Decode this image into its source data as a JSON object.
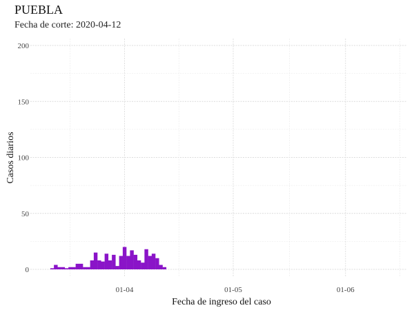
{
  "chart_data": {
    "type": "bar",
    "title": "PUEBLA",
    "subtitle": "Fecha de corte: 2020-04-12",
    "xlabel": "Fecha de ingreso del caso",
    "ylabel": "Casos diarios",
    "ylim": [
      0,
      200
    ],
    "yticks": [
      0,
      50,
      100,
      150,
      200
    ],
    "xlim": [
      "2020-03-06",
      "2020-06-18"
    ],
    "xticks": [
      {
        "date": "2020-04-01",
        "label": "01-04"
      },
      {
        "date": "2020-05-01",
        "label": "01-05"
      },
      {
        "date": "2020-06-01",
        "label": "01-06"
      }
    ],
    "bar_color": "#8a14c8",
    "grid": true,
    "categories": [
      "2020-03-12",
      "2020-03-13",
      "2020-03-14",
      "2020-03-15",
      "2020-03-16",
      "2020-03-17",
      "2020-03-18",
      "2020-03-19",
      "2020-03-20",
      "2020-03-21",
      "2020-03-22",
      "2020-03-23",
      "2020-03-24",
      "2020-03-25",
      "2020-03-26",
      "2020-03-27",
      "2020-03-28",
      "2020-03-29",
      "2020-03-30",
      "2020-03-31",
      "2020-04-01",
      "2020-04-02",
      "2020-04-03",
      "2020-04-04",
      "2020-04-05",
      "2020-04-06",
      "2020-04-07",
      "2020-04-08",
      "2020-04-09",
      "2020-04-10",
      "2020-04-11",
      "2020-04-12"
    ],
    "values": [
      1,
      4,
      2,
      2,
      1,
      2,
      2,
      5,
      5,
      2,
      2,
      8,
      15,
      8,
      7,
      14,
      8,
      13,
      3,
      12,
      20,
      12,
      17,
      13,
      8,
      6,
      18,
      12,
      14,
      10,
      4,
      2
    ]
  }
}
